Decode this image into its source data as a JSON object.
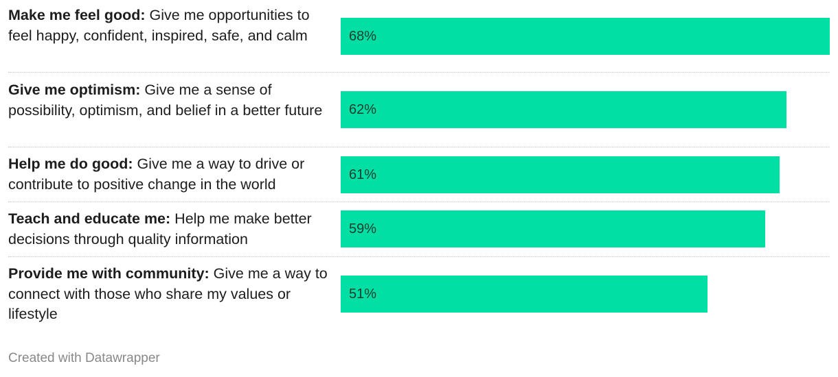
{
  "chart_data": {
    "type": "bar",
    "orientation": "horizontal",
    "value_suffix": "%",
    "xlim": [
      0,
      68
    ],
    "color": "#02dfa5",
    "categories": [
      {
        "bold": "Make me feel good:",
        "text": " Give me opportunities to feel happy, confident, inspired, safe, and calm",
        "value": 68
      },
      {
        "bold": "Give me optimism:",
        "text": " Give me a sense of possibility, optimism, and belief in a better future",
        "value": 62
      },
      {
        "bold": "Help me do good:",
        "text": " Give me a way to drive or contribute to positive change in the world",
        "value": 61
      },
      {
        "bold": "Teach and educate me:",
        "text": " Help me make better decisions through quality information",
        "value": 59
      },
      {
        "bold": "Provide me with community:",
        "text": " Give me a way to connect with those who share my values or lifestyle",
        "value": 51
      }
    ]
  },
  "footer": {
    "credit": "Created with Datawrapper"
  }
}
